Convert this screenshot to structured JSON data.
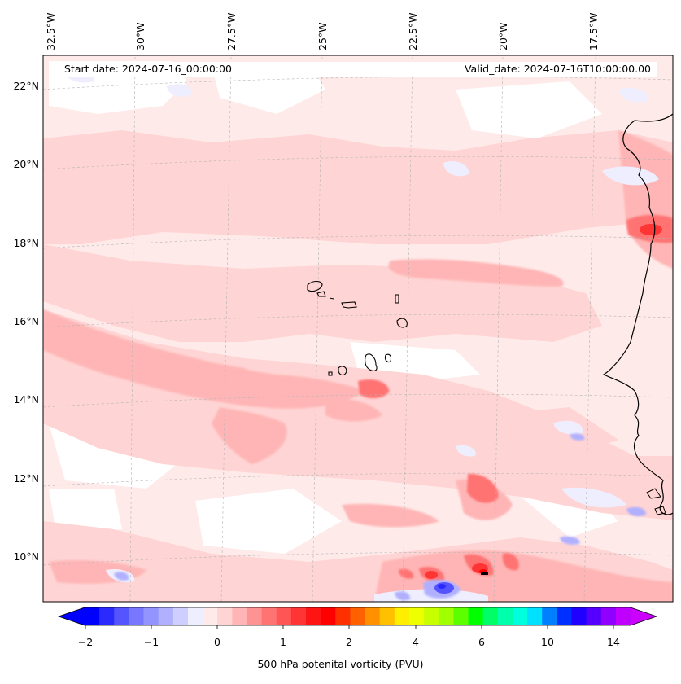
{
  "header": {
    "start_date": "Start date: 2024-07-16_00:00:00",
    "valid_date": "Valid_date: 2024-07-16T10:00:00.00"
  },
  "map": {
    "lon_labels": [
      "32.5°W",
      "30°W",
      "27.5°W",
      "25°W",
      "22.5°W",
      "20°W",
      "17.5°W"
    ],
    "lat_labels": [
      "22°N",
      "20°N",
      "18°N",
      "16°N",
      "14°N",
      "12°N",
      "10°N"
    ],
    "gridlines": "dashed"
  },
  "colorbar": {
    "title": "500 hPa potenital vorticity (PVU)",
    "tick_labels": [
      "−2",
      "−1",
      "0",
      "1",
      "2",
      "4",
      "6",
      "10",
      "14"
    ],
    "extend": "both",
    "colors": [
      "#0000ff",
      "#2a2aff",
      "#5555ff",
      "#7777ff",
      "#9494ff",
      "#b0b0ff",
      "#cfcfff",
      "#eeeeff",
      "#ffeaea",
      "#ffd4d4",
      "#ffb5b5",
      "#ff9393",
      "#ff7373",
      "#ff5555",
      "#ff3535",
      "#ff1414",
      "#ff0000",
      "#ff3000",
      "#ff6000",
      "#ff9000",
      "#ffc000",
      "#ffee00",
      "#eeff00",
      "#c8ff00",
      "#a0ff00",
      "#5cff00",
      "#00ff00",
      "#00ff66",
      "#00ffaa",
      "#00ffdd",
      "#00e0ff",
      "#0080ff",
      "#0030ff",
      "#2000ff",
      "#5500ff",
      "#9000ff",
      "#c000ff"
    ],
    "under_color": "#0000ff",
    "over_color": "#cc00ff"
  }
}
